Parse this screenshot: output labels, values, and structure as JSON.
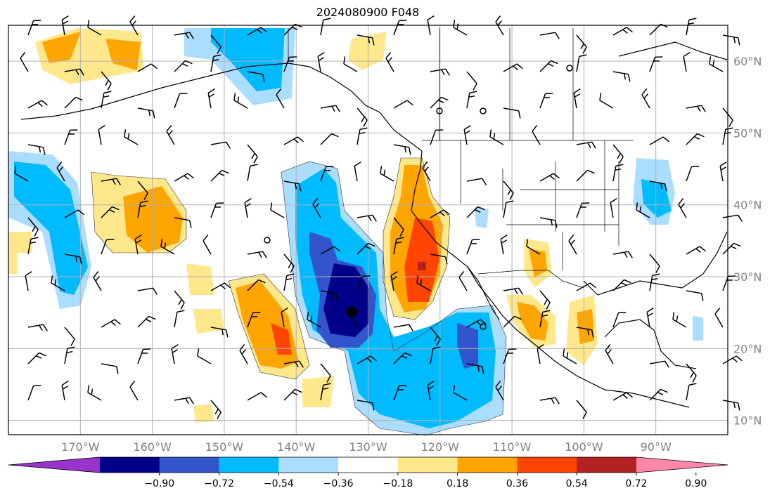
{
  "title": "2024080900 F048",
  "map": {
    "lon_range": [
      -180,
      -80
    ],
    "lat_range": [
      8,
      65
    ],
    "lon_ticks": [
      "170°W",
      "160°W",
      "150°W",
      "140°W",
      "130°W",
      "120°W",
      "110°W",
      "100°W",
      "90°W"
    ],
    "lat_ticks": [
      "10°N",
      "20°N",
      "30°N",
      "40°N",
      "50°N",
      "60°N"
    ],
    "grid": true
  },
  "colorbar": {
    "labels": [
      "−0.90",
      "−0.72",
      "−0.54",
      "−0.36",
      "−0.18",
      "0.18",
      "0.36",
      "0.54",
      "0.72",
      "0.90"
    ],
    "colors": [
      "#9933cc",
      "#000088",
      "#3355cc",
      "#00bbff",
      "#aaddff",
      "#ffffff",
      "#ffe88c",
      "#ffa500",
      "#ff4500",
      "#b22222",
      "#ff88aa"
    ]
  }
}
